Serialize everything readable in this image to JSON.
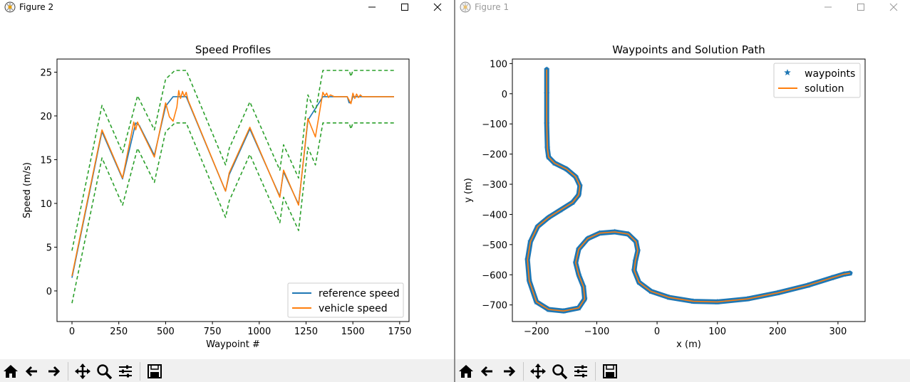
{
  "windows": {
    "figure2": {
      "title": "Figure 2",
      "chart_data": {
        "type": "line",
        "title": "Speed Profiles",
        "xlabel": "Waypoint #",
        "ylabel": "Speed (m/s)",
        "xlim": [
          -80,
          1800
        ],
        "ylim": [
          -3.5,
          26.5
        ],
        "xticks": [
          0,
          250,
          500,
          750,
          1000,
          1250,
          1500,
          1750
        ],
        "yticks": [
          0,
          5,
          10,
          15,
          20,
          25
        ],
        "legend": "lower-right",
        "series": [
          {
            "name": "reference speed",
            "color": "#1f77b4",
            "x": [
              0,
              160,
              270,
              340,
              360,
              440,
              500,
              540,
              610,
              820,
              840,
              950,
              1110,
              1130,
              1210,
              1260,
              1340,
              1470,
              1480,
              1490,
              1500,
              1720
            ],
            "y": [
              1.5,
              18.2,
              12.8,
              19.2,
              18.9,
              15.5,
              21.1,
              22.2,
              22.2,
              11.4,
              13.3,
              18.5,
              10.8,
              13.6,
              9.9,
              19.5,
              22.2,
              22.2,
              21.5,
              21.5,
              22.2,
              22.2
            ]
          },
          {
            "name": "vehicle speed",
            "color": "#ff7f0e",
            "x": [
              0,
              160,
              270,
              330,
              340,
              350,
              360,
              440,
              500,
              520,
              540,
              560,
              570,
              580,
              590,
              600,
              610,
              620,
              820,
              840,
              950,
              1110,
              1130,
              1210,
              1260,
              1300,
              1340,
              1350,
              1360,
              1370,
              1380,
              1400,
              1470,
              1490,
              1500,
              1510,
              1520,
              1530,
              1540,
              1550,
              1720
            ],
            "y": [
              1.7,
              18.4,
              12.9,
              19.3,
              18.4,
              19.3,
              18.8,
              15.3,
              21.5,
              19.9,
              19.4,
              21.0,
              22.9,
              22.0,
              22.8,
              22.2,
              22.7,
              21.8,
              11.4,
              13.5,
              18.7,
              10.7,
              13.8,
              9.8,
              19.7,
              17.6,
              22.7,
              22.3,
              22.6,
              22.1,
              22.4,
              22.2,
              22.2,
              21.4,
              22.6,
              22.0,
              22.5,
              22.1,
              22.4,
              22.2,
              22.2
            ]
          },
          {
            "name": "",
            "color": "#2ca02c",
            "dashed": true,
            "x": [
              0,
              160,
              270,
              350,
              440,
              500,
              550,
              610,
              820,
              840,
              950,
              1110,
              1130,
              1210,
              1260,
              1300,
              1340,
              1480,
              1490,
              1500,
              1720
            ],
            "y": [
              4.6,
              21.2,
              15.8,
              22.3,
              18.4,
              24.2,
              25.2,
              25.2,
              14.4,
              16.3,
              21.6,
              13.8,
              16.7,
              12.9,
              22.4,
              20.4,
              25.2,
              25.2,
              24.5,
              25.2,
              25.2
            ]
          },
          {
            "name": "",
            "color": "#2ca02c",
            "dashed": true,
            "x": [
              0,
              160,
              270,
              350,
              440,
              500,
              550,
              610,
              820,
              840,
              950,
              1110,
              1130,
              1210,
              1260,
              1300,
              1340,
              1480,
              1490,
              1500,
              1720
            ],
            "y": [
              -1.4,
              15.2,
              9.8,
              16.3,
              12.4,
              18.2,
              19.2,
              19.2,
              8.4,
              10.3,
              15.6,
              7.8,
              10.7,
              6.9,
              16.4,
              14.4,
              19.2,
              19.2,
              18.5,
              19.2,
              19.2
            ]
          }
        ]
      }
    },
    "figure1": {
      "title": "Figure 1",
      "chart_data": {
        "type": "line",
        "title": "Waypoints and Solution Path",
        "xlabel": "x (m)",
        "ylabel": "y (m)",
        "xlim": [
          -240,
          345
        ],
        "ylim": [
          -755,
          115
        ],
        "xticks": [
          -200,
          -100,
          0,
          100,
          200,
          300
        ],
        "yticks": [
          100,
          0,
          -100,
          -200,
          -300,
          -400,
          -500,
          -600,
          -700
        ],
        "legend": "upper-right",
        "series": [
          {
            "name": "waypoints",
            "marker": "star",
            "color": "#1f77b4",
            "x": [
              -183,
              -183,
              -183,
              -182,
              -180,
              -170,
              -150,
              -135,
              -128,
              -130,
              -140,
              -160,
              -180,
              -198,
              -210,
              -215,
              -212,
              -200,
              -180,
              -155,
              -130,
              -120,
              -122,
              -130,
              -135,
              -130,
              -115,
              -95,
              -70,
              -48,
              -35,
              -32,
              -36,
              -38,
              -30,
              -10,
              20,
              60,
              100,
              150,
              200,
              250,
              290,
              310,
              320
            ],
            "y": [
              80,
              0,
              -100,
              -180,
              -210,
              -230,
              -250,
              -275,
              -305,
              -335,
              -360,
              -385,
              -410,
              -440,
              -490,
              -550,
              -620,
              -690,
              -715,
              -720,
              -710,
              -680,
              -640,
              -600,
              -560,
              -515,
              -480,
              -462,
              -458,
              -465,
              -490,
              -520,
              -555,
              -585,
              -625,
              -655,
              -675,
              -688,
              -690,
              -680,
              -660,
              -635,
              -610,
              -598,
              -595
            ]
          },
          {
            "name": "solution",
            "color": "#ff7f0e",
            "x": [
              -183,
              -183,
              -183,
              -182,
              -180,
              -170,
              -150,
              -135,
              -128,
              -130,
              -140,
              -160,
              -180,
              -198,
              -210,
              -215,
              -212,
              -200,
              -180,
              -155,
              -130,
              -120,
              -122,
              -130,
              -135,
              -130,
              -115,
              -95,
              -70,
              -48,
              -35,
              -32,
              -36,
              -38,
              -30,
              -10,
              20,
              60,
              100,
              150,
              200,
              250,
              290,
              310,
              320
            ],
            "y": [
              80,
              0,
              -100,
              -180,
              -210,
              -230,
              -250,
              -275,
              -305,
              -335,
              -360,
              -385,
              -410,
              -440,
              -490,
              -550,
              -620,
              -690,
              -715,
              -720,
              -710,
              -680,
              -640,
              -600,
              -560,
              -515,
              -480,
              -462,
              -458,
              -465,
              -490,
              -520,
              -555,
              -585,
              -625,
              -655,
              -675,
              -688,
              -690,
              -680,
              -660,
              -635,
              -610,
              -598,
              -595
            ]
          }
        ]
      }
    }
  },
  "toolbar_tools": [
    "home-icon",
    "back-arrow-icon",
    "forward-arrow-icon",
    "pan-icon",
    "zoom-icon",
    "configure-subplots-icon",
    "save-icon"
  ]
}
